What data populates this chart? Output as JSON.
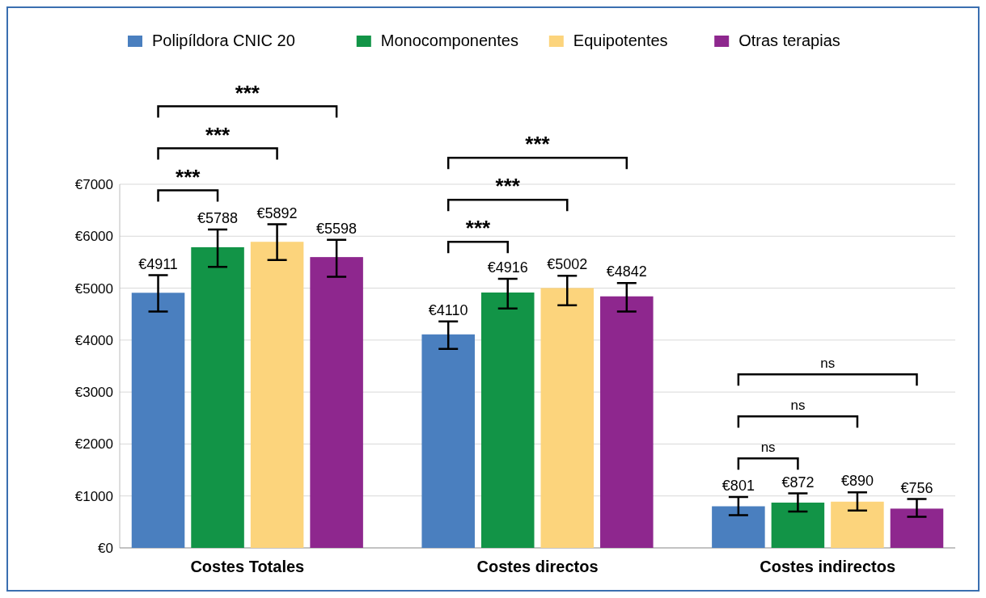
{
  "chart_data": {
    "type": "bar",
    "categories": [
      "Costes Totales",
      "Costes directos",
      "Costes indirectos"
    ],
    "series": [
      {
        "name": "Polipíldora CNIC 20",
        "color": "#4a7fbf",
        "values": [
          4911,
          4110,
          801
        ],
        "errors": [
          [
            4550,
            5250
          ],
          [
            3830,
            4360
          ],
          [
            630,
            980
          ]
        ]
      },
      {
        "name": "Monocomponentes",
        "color": "#129447",
        "values": [
          5788,
          4916,
          872
        ],
        "errors": [
          [
            5410,
            6130
          ],
          [
            4610,
            5180
          ],
          [
            700,
            1050
          ]
        ]
      },
      {
        "name": "Equipotentes",
        "color": "#fcd47c",
        "values": [
          5892,
          5002,
          890
        ],
        "errors": [
          [
            5540,
            6230
          ],
          [
            4670,
            5240
          ],
          [
            720,
            1070
          ]
        ]
      },
      {
        "name": "Otras terapias",
        "color": "#8e278e",
        "values": [
          5598,
          4842,
          756
        ],
        "errors": [
          [
            5220,
            5930
          ],
          [
            4550,
            5100
          ],
          [
            600,
            940
          ]
        ]
      }
    ],
    "ylim": [
      0,
      7000
    ],
    "yticks": [
      {
        "value": 0,
        "label": "€0"
      },
      {
        "value": 1000,
        "label": "€1000"
      },
      {
        "value": 2000,
        "label": "€2000"
      },
      {
        "value": 3000,
        "label": "€3000"
      },
      {
        "value": 4000,
        "label": "€4000"
      },
      {
        "value": 5000,
        "label": "€5000"
      },
      {
        "value": 6000,
        "label": "€6000"
      },
      {
        "value": 7000,
        "label": "€7000"
      }
    ],
    "value_labels": [
      [
        "€4911",
        "€4110",
        "€801"
      ],
      [
        "€5788",
        "€4916",
        "€872"
      ],
      [
        "€5892",
        "€5002",
        "€890"
      ],
      [
        "€5598",
        "€4842",
        "€756"
      ]
    ],
    "annotations": [
      "***",
      "***",
      "***",
      "***",
      "***",
      "***",
      "ns",
      "ns",
      "ns"
    ],
    "grid": "y",
    "legend": "top"
  }
}
